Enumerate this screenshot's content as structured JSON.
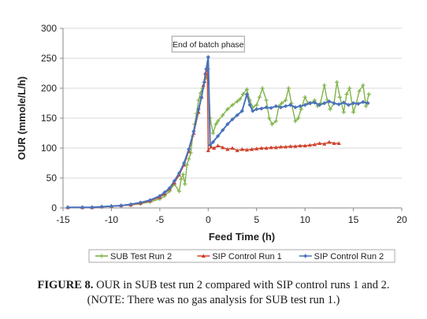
{
  "chart_data": {
    "type": "line",
    "xlabel": "Feed Time (h)",
    "ylabel": "OUR (mmole/L/h)",
    "xlim": [
      -15,
      20
    ],
    "ylim": [
      0,
      300
    ],
    "xticks": [
      -15,
      -10,
      -5,
      0,
      5,
      10,
      15,
      20
    ],
    "yticks": [
      0,
      50,
      100,
      150,
      200,
      250,
      300
    ],
    "grid": "horizontal",
    "legend_placement": "bottom",
    "annotation": {
      "text": "End of batch phase",
      "x": 0,
      "y": 252
    },
    "series": [
      {
        "name": "SUB Test Run 2",
        "color": "#7fb34a",
        "marker": "cross",
        "x": [
          -14.5,
          -13,
          -12,
          -11,
          -10,
          -9,
          -8,
          -7,
          -6,
          -5,
          -4.5,
          -4,
          -3.5,
          -3,
          -2.8,
          -2.6,
          -2.4,
          -2.2,
          -2,
          -1.8,
          -1.6,
          -1.4,
          -1.2,
          -1,
          -0.8,
          -0.6,
          -0.4,
          -0.2,
          0,
          0.2,
          0.5,
          0.8,
          1,
          1.5,
          2,
          2.5,
          3,
          3.3,
          3.6,
          4,
          4.3,
          4.6,
          5,
          5.3,
          5.6,
          6,
          6.3,
          6.6,
          7,
          7.3,
          7.6,
          8,
          8.3,
          8.6,
          9,
          9.3,
          9.6,
          10,
          10.3,
          10.6,
          11,
          11.3,
          11.6,
          12,
          12.3,
          12.6,
          13,
          13.3,
          13.6,
          14,
          14.3,
          14.6,
          15,
          15.3,
          15.6,
          16,
          16.3,
          16.6
        ],
        "y": [
          1,
          1,
          1,
          2,
          3,
          4,
          5,
          7,
          10,
          15,
          20,
          28,
          40,
          28,
          48,
          56,
          40,
          72,
          82,
          92,
          120,
          140,
          158,
          180,
          192,
          200,
          210,
          218,
          232,
          150,
          125,
          140,
          145,
          155,
          165,
          172,
          178,
          182,
          190,
          198,
          180,
          168,
          172,
          185,
          200,
          180,
          150,
          140,
          145,
          170,
          175,
          180,
          200,
          175,
          145,
          150,
          165,
          185,
          175,
          175,
          180,
          170,
          175,
          205,
          180,
          165,
          175,
          210,
          185,
          160,
          190,
          200,
          160,
          175,
          195,
          205,
          170,
          190
        ]
      },
      {
        "name": "SIP Control Run 1",
        "color": "#d0432c",
        "marker": "triangle",
        "x": [
          -14.5,
          -13,
          -12,
          -11,
          -10,
          -9,
          -8,
          -7,
          -6,
          -5,
          -4.5,
          -4,
          -3.5,
          -3,
          -2.5,
          -2,
          -1.5,
          -1,
          -0.7,
          -0.5,
          -0.3,
          -0.1,
          0,
          0.3,
          0.6,
          1,
          1.5,
          2,
          2.5,
          3,
          3.5,
          4,
          4.5,
          5,
          5.5,
          6,
          6.5,
          7,
          7.5,
          8,
          8.5,
          9,
          9.5,
          10,
          10.5,
          11,
          11.5,
          12,
          12.5,
          13,
          13.5
        ],
        "y": [
          1,
          1,
          1,
          2,
          3,
          4,
          5,
          8,
          12,
          18,
          24,
          32,
          42,
          55,
          72,
          95,
          125,
          160,
          185,
          205,
          225,
          235,
          96,
          102,
          100,
          104,
          101,
          98,
          100,
          96,
          98,
          97,
          98,
          99,
          100,
          100,
          101,
          101,
          102,
          102,
          103,
          103,
          104,
          104,
          105,
          106,
          108,
          107,
          110,
          108,
          108
        ]
      },
      {
        "name": "SIP Control Run 2",
        "color": "#4a72bb",
        "marker": "diamond",
        "x": [
          -14.5,
          -13,
          -12,
          -11,
          -10,
          -9,
          -8,
          -7,
          -6,
          -5,
          -4.5,
          -4,
          -3.5,
          -3,
          -2.5,
          -2,
          -1.5,
          -1,
          -0.7,
          -0.4,
          -0.2,
          0,
          0.2,
          0.5,
          1,
          1.5,
          2,
          2.5,
          3,
          3.5,
          4,
          4.3,
          4.6,
          5,
          5.5,
          6,
          6.5,
          7,
          7.5,
          8,
          8.5,
          9,
          9.5,
          10,
          10.5,
          11,
          11.5,
          12,
          12.5,
          13,
          13.5,
          14,
          14.5,
          15,
          15.5,
          16,
          16.5
        ],
        "y": [
          1,
          1,
          1,
          2,
          3,
          4,
          6,
          9,
          13,
          20,
          26,
          33,
          45,
          58,
          75,
          98,
          128,
          165,
          185,
          210,
          232,
          252,
          105,
          110,
          120,
          130,
          140,
          148,
          155,
          162,
          190,
          172,
          162,
          165,
          166,
          168,
          167,
          170,
          168,
          170,
          172,
          168,
          170,
          172,
          175,
          176,
          172,
          175,
          178,
          175,
          173,
          176,
          172,
          175,
          174,
          177,
          175
        ]
      }
    ]
  },
  "caption": {
    "label": "FIGURE 8.",
    "line1": " OUR in SUB test run 2 compared with SIP control runs 1 and 2.",
    "line2": "(NOTE: There was no gas analysis for SUB test run 1.)"
  }
}
